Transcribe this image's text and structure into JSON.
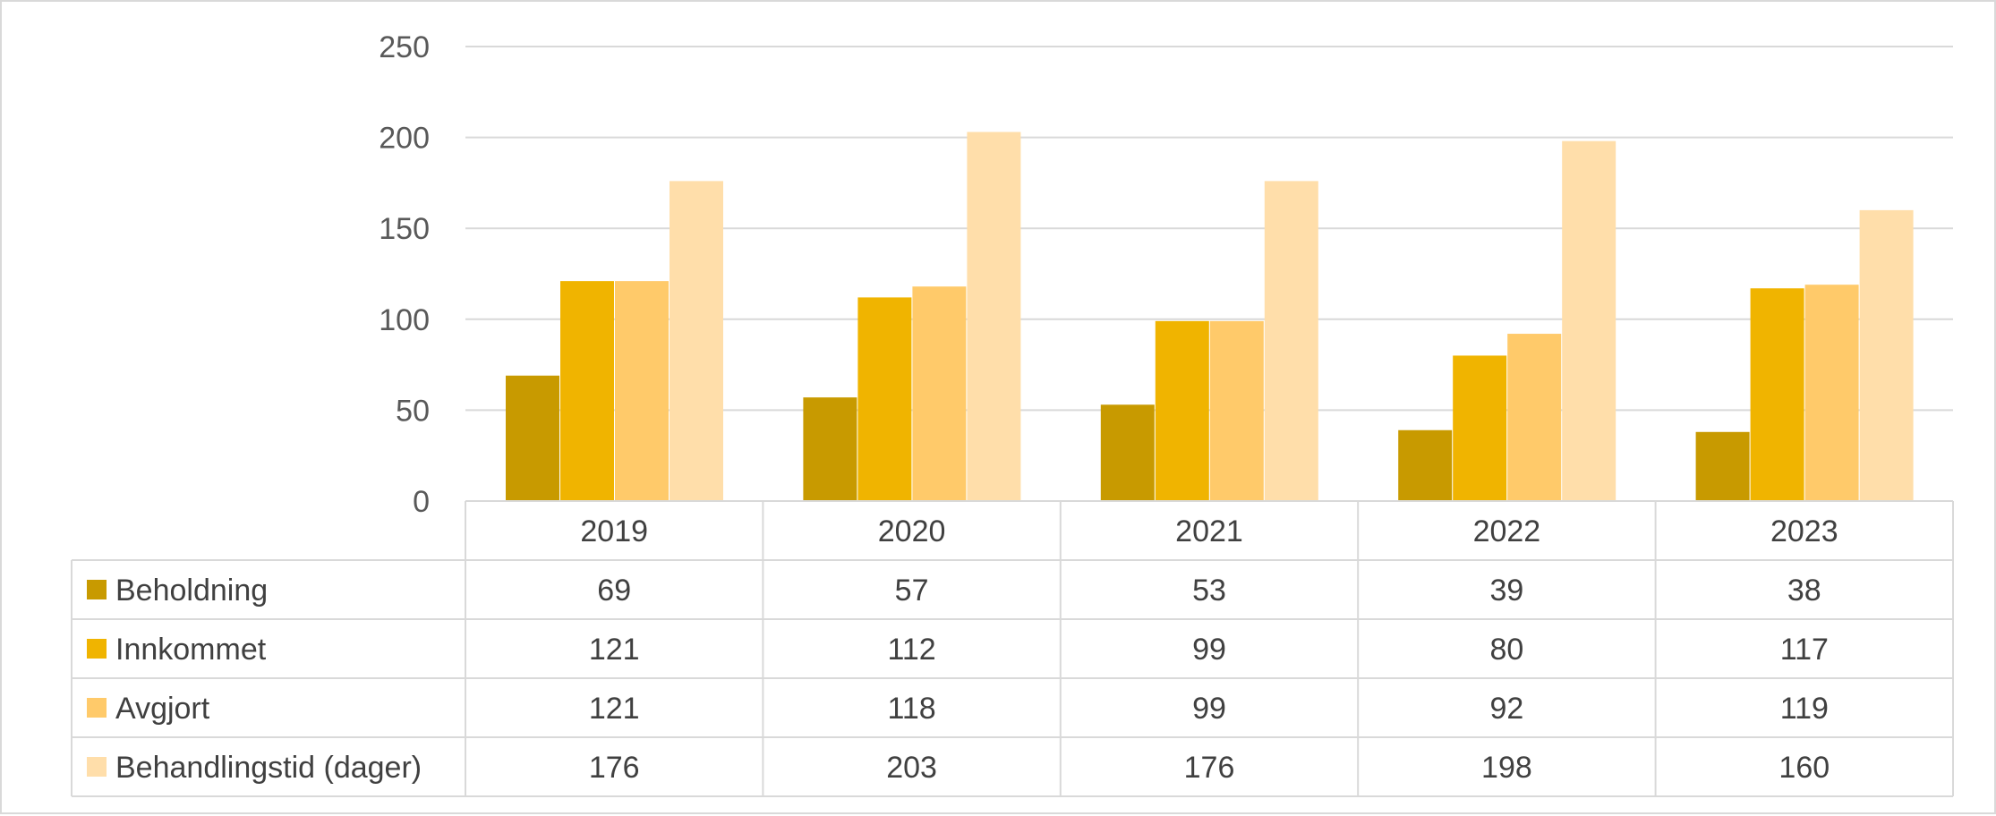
{
  "chart_data": {
    "type": "bar",
    "categories": [
      "2019",
      "2020",
      "2021",
      "2022",
      "2023"
    ],
    "series": [
      {
        "name": "Beholdning",
        "values": [
          69,
          57,
          53,
          39,
          38
        ],
        "color": "#C89A00"
      },
      {
        "name": "Innkommet",
        "values": [
          121,
          112,
          99,
          80,
          117
        ],
        "color": "#F0B400"
      },
      {
        "name": "Avgjort",
        "values": [
          121,
          118,
          99,
          92,
          119
        ],
        "color": "#FFCA6A"
      },
      {
        "name": "Behandlingstid (dager)",
        "values": [
          176,
          203,
          176,
          198,
          160
        ],
        "color": "#FFDEAA"
      }
    ],
    "yticks": [
      0,
      50,
      100,
      150,
      200,
      250
    ],
    "ylim": [
      0,
      250
    ],
    "title": "",
    "xlabel": "",
    "ylabel": "",
    "grid": true,
    "legend": "data-table",
    "gridline_color": "#d9d9d9"
  }
}
